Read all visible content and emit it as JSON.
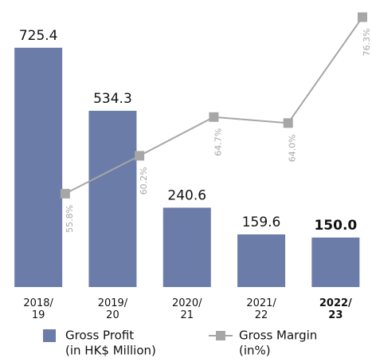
{
  "chart_data": {
    "type": "bar-line",
    "categories": [
      "2018/19",
      "2019/20",
      "2020/21",
      "2021/22",
      "2022/23"
    ],
    "series": [
      {
        "name": "Gross Profit",
        "unit": "(in HK$ Million)",
        "type": "bar",
        "color": "#6b7ca8",
        "values": [
          725.4,
          534.3,
          240.6,
          159.6,
          150.0
        ],
        "value_labels": [
          "725.4",
          "534.3",
          "240.6",
          "159.6",
          "150.0"
        ]
      },
      {
        "name": "Gross Margin",
        "unit": "(in%)",
        "type": "line",
        "axis": "y2",
        "color": "#a6a6a6",
        "values": [
          55.8,
          60.2,
          64.7,
          64.0,
          76.3
        ],
        "value_labels": [
          "55.8%",
          "60.2%",
          "64.7%",
          "64.0%",
          "76.3%"
        ]
      }
    ],
    "ylim": [
      0,
      800
    ],
    "y2lim": [
      50,
      80
    ]
  }
}
